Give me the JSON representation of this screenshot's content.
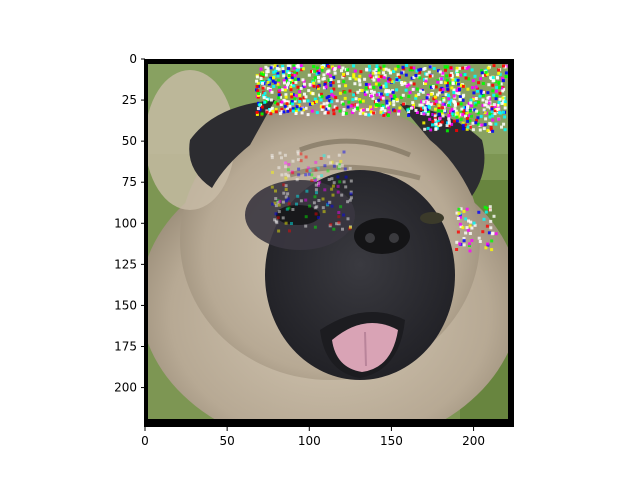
{
  "figure": {
    "background": "#ffffff",
    "image_description_icon": "pug-photo-icon"
  },
  "axes": {
    "x_ticks": [
      "0",
      "50",
      "100",
      "150",
      "200"
    ],
    "y_ticks": [
      "0",
      "25",
      "50",
      "75",
      "100",
      "125",
      "150",
      "175",
      "200"
    ],
    "x_range": [
      0,
      224
    ],
    "y_range": [
      224,
      0
    ],
    "frame_color": "#000000"
  },
  "palette": {
    "fur": "#b3a58f",
    "fur_light": "#d8cfbe",
    "mask": "#2f2f33",
    "tongue": "#d9a3b5",
    "grass": "#6f8a45",
    "sky_noise": [
      "#ff00ff",
      "#00ffff",
      "#ff0000",
      "#00ff00",
      "#0000ff",
      "#ffff00"
    ]
  }
}
